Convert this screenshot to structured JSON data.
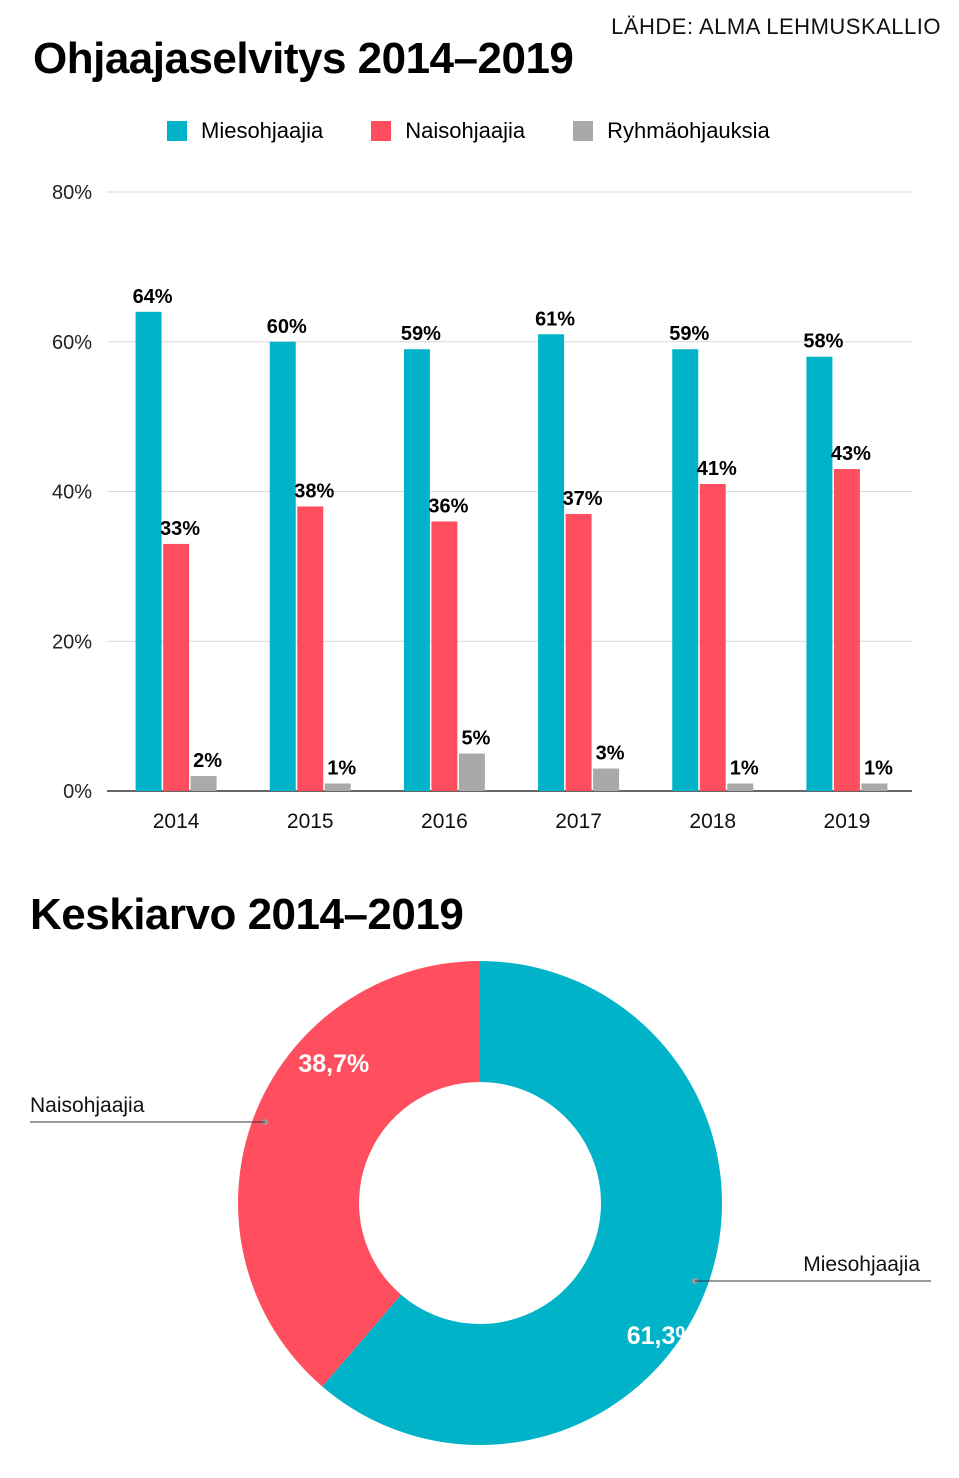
{
  "source": "LÄHDE: ALMA LEHMUSKALLIO",
  "colors": {
    "male": "#00b3c8",
    "female": "#ff4f5e",
    "group": "#a9a9a9",
    "grid": "#d9d9d9",
    "axis": "#333333"
  },
  "chart_data": [
    {
      "type": "bar",
      "title": "Ohjaajaselvitys 2014–2019",
      "categories": [
        "2014",
        "2015",
        "2016",
        "2017",
        "2018",
        "2019"
      ],
      "series": [
        {
          "name": "Miesohjaajia",
          "values": [
            64,
            60,
            59,
            61,
            59,
            58
          ],
          "labels": [
            "64%",
            "60%",
            "59%",
            "61%",
            "59%",
            "58%"
          ]
        },
        {
          "name": "Naisohjaajia",
          "values": [
            33,
            38,
            36,
            37,
            41,
            43
          ],
          "labels": [
            "33%",
            "38%",
            "36%",
            "37%",
            "41%",
            "43%"
          ]
        },
        {
          "name": "Ryhmäohjauksia",
          "values": [
            2,
            1,
            5,
            3,
            1,
            1
          ],
          "labels": [
            "2%",
            "1%",
            "5%",
            "3%",
            "1%",
            "1%"
          ]
        }
      ],
      "ylim": [
        0,
        80
      ],
      "yticks": [
        "0%",
        "20%",
        "40%",
        "60%",
        "80%"
      ],
      "grid": true,
      "legend": "top"
    },
    {
      "type": "pie",
      "title": "Keskiarvo 2014–2019",
      "slices": [
        {
          "name": "Miesohjaajia",
          "value": 61.3,
          "label": "61,3%"
        },
        {
          "name": "Naisohjaajia",
          "value": 38.7,
          "label": "38,7%"
        }
      ]
    }
  ]
}
